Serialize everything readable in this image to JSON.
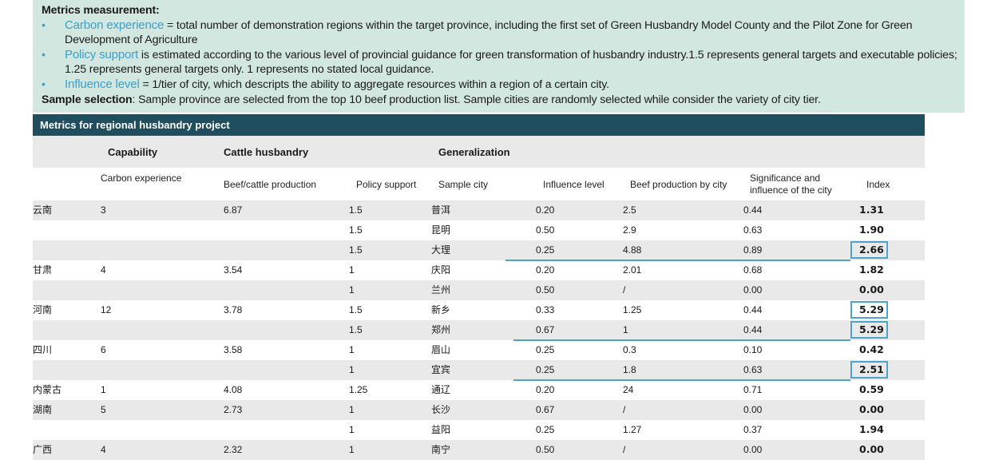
{
  "note": {
    "heading": "Metrics measurement:",
    "bullet_glyph": "•",
    "bullets": [
      {
        "term": "Carbon experience",
        "text": " = total number of demonstration regions within the target province, including the first set of Green Husbandry Model County and the Pilot Zone for Green Development of Agriculture"
      },
      {
        "term": "Policy support",
        "text": " is estimated according to the various level of provincial guidance for green transformation of husbandry industry.1.5 represents general targets and executable policies; 1.25 represents general targets only.  1 represents no stated local guidance."
      },
      {
        "term": "Influence level",
        "text": " = 1/tier of city, which descripts the ability to aggregate resources within a region of a certain city."
      }
    ],
    "sample_heading": "Sample selection",
    "sample_text": ": Sample province are selected from the top 10 beef production list. Sample cities are randomly selected while consider the variety of city tier."
  },
  "table": {
    "title": "Metrics for regional husbandry project",
    "groups": [
      "Capability",
      "Cattle husbandry",
      "Generalization"
    ],
    "columns": [
      "Carbon experience",
      "Beef/cattle production",
      "Policy support",
      "Sample city",
      "Influence level",
      "Beef production by city",
      "Significance and influence of the city",
      "Index"
    ],
    "rows": [
      {
        "province": "云南",
        "carbon": "3",
        "beef": "6.87",
        "policy": "1.5",
        "city": "普洱",
        "influence": "0.20",
        "city_beef": "2.5",
        "significance": "0.44",
        "index": "1.31"
      },
      {
        "province": "",
        "carbon": "",
        "beef": "",
        "policy": "1.5",
        "city": "昆明",
        "influence": "0.50",
        "city_beef": "2.9",
        "significance": "0.63",
        "index": "1.90"
      },
      {
        "province": "",
        "carbon": "",
        "beef": "",
        "policy": "1.5",
        "city": "大理",
        "influence": "0.25",
        "city_beef": "4.88",
        "significance": "0.89",
        "index": "2.66"
      },
      {
        "province": "甘肃",
        "carbon": "4",
        "beef": "3.54",
        "policy": "1",
        "city": "庆阳",
        "influence": "0.20",
        "city_beef": "2.01",
        "significance": "0.68",
        "index": "1.82"
      },
      {
        "province": "",
        "carbon": "",
        "beef": "",
        "policy": "1",
        "city": "兰州",
        "influence": "0.50",
        "city_beef": "/",
        "significance": "0.00",
        "index": "0.00"
      },
      {
        "province": "河南",
        "carbon": "12",
        "beef": "3.78",
        "policy": "1.5",
        "city": "新乡",
        "influence": "0.33",
        "city_beef": "1.25",
        "significance": "0.44",
        "index": "5.29"
      },
      {
        "province": "",
        "carbon": "",
        "beef": "",
        "policy": "1.5",
        "city": "郑州",
        "influence": "0.67",
        "city_beef": "1",
        "significance": "0.44",
        "index": "5.29"
      },
      {
        "province": "四川",
        "carbon": "6",
        "beef": "3.58",
        "policy": "1",
        "city": "眉山",
        "influence": "0.25",
        "city_beef": "0.3",
        "significance": "0.10",
        "index": "0.42"
      },
      {
        "province": "",
        "carbon": "",
        "beef": "",
        "policy": "1",
        "city": "宜宾",
        "influence": "0.25",
        "city_beef": "1.8",
        "significance": "0.63",
        "index": "2.51"
      },
      {
        "province": "内蒙古",
        "carbon": "1",
        "beef": "4.08",
        "policy": "1.25",
        "city": "通辽",
        "influence": "0.20",
        "city_beef": "24",
        "significance": "0.71",
        "index": "0.59"
      },
      {
        "province": "湖南",
        "carbon": "5",
        "beef": "2.73",
        "policy": "1",
        "city": "长沙",
        "influence": "0.67",
        "city_beef": "/",
        "significance": "0.00",
        "index": "0.00"
      },
      {
        "province": "",
        "carbon": "",
        "beef": "",
        "policy": "1",
        "city": "益阳",
        "influence": "0.25",
        "city_beef": "1.27",
        "significance": "0.37",
        "index": "1.94"
      },
      {
        "province": "广西",
        "carbon": "4",
        "beef": "2.32",
        "policy": "1",
        "city": "南宁",
        "influence": "0.50",
        "city_beef": "/",
        "significance": "0.00",
        "index": "0.00"
      }
    ],
    "highlighted_index_rows": [
      2,
      5,
      6,
      8
    ],
    "underlined_rows": [
      2,
      6,
      8
    ],
    "accent_color": "#4da3c8",
    "header_color": "#1f4e5f"
  }
}
